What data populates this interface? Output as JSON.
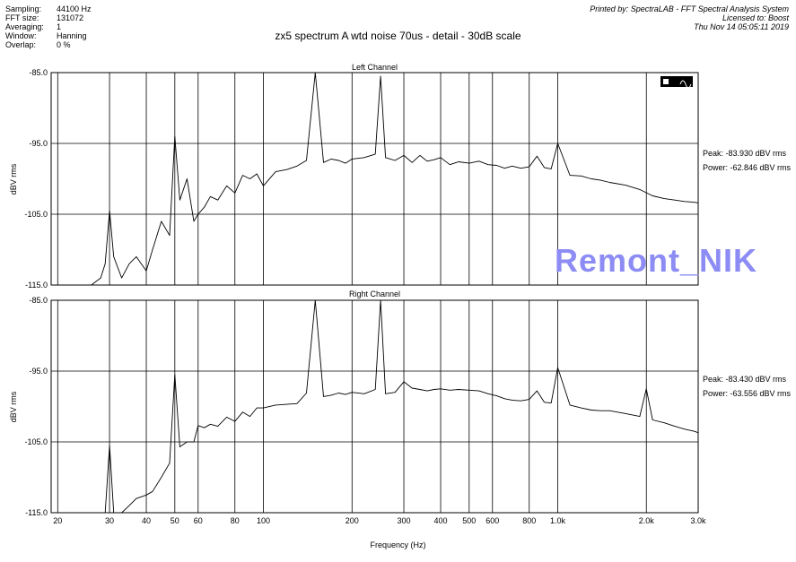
{
  "header": {
    "settings": [
      {
        "key": "Sampling:",
        "value": "44100 Hz"
      },
      {
        "key": "FFT size:",
        "value": "131072"
      },
      {
        "key": "Averaging:",
        "value": "1"
      },
      {
        "key": "Window:",
        "value": "Hanning"
      },
      {
        "key": "Overlap:",
        "value": "0 %"
      }
    ],
    "printed_by": "Printed by: SpectraLAB - FFT Spectral Analysis System",
    "licensed_to": "Licensed to: Boost",
    "date": "Thu Nov 14 05:05:11 2019"
  },
  "title": "zx5 spectrum A wtd noise 70us - detail - 30dB scale",
  "watermark": "Remont_NIK",
  "toolbar_icon": "spectrum-icon",
  "chart_data": [
    {
      "type": "line",
      "title": "Left Channel",
      "ylabel": "dBV rms",
      "xlabel": "Frequency (Hz)",
      "xscale": "log",
      "xlim": [
        19,
        3000
      ],
      "ylim": [
        -115,
        -85
      ],
      "yticks": [
        -85.0,
        -95.0,
        -105.0,
        -115.0
      ],
      "ytick_labels": [
        "-85.0",
        "-95.0",
        "-105.0",
        "-115.0"
      ],
      "xticks": [
        20,
        30,
        40,
        50,
        60,
        80,
        100,
        200,
        300,
        400,
        500,
        600,
        800,
        1000,
        2000,
        3000
      ],
      "xtick_labels": [
        "20",
        "30",
        "40",
        "50",
        "60",
        "80",
        "100",
        "200",
        "300",
        "400",
        "500",
        "600",
        "800",
        "1.0k",
        "2.0k",
        "3.0k"
      ],
      "grid": true,
      "peak": "Peak: -83.930 dBV rms",
      "power": "Power: -62.846 dBV rms",
      "series": [
        {
          "x": [
            19,
            26,
            28,
            29,
            30,
            31,
            33,
            35,
            37,
            40,
            42,
            45,
            48,
            50,
            52,
            55,
            58,
            60,
            63,
            66,
            70,
            75,
            80,
            85,
            90,
            95,
            100,
            110,
            120,
            130,
            140,
            150,
            160,
            170,
            180,
            190,
            200,
            220,
            240,
            250,
            260,
            280,
            300,
            320,
            340,
            360,
            380,
            400,
            430,
            460,
            500,
            540,
            580,
            620,
            660,
            700,
            750,
            800,
            850,
            900,
            950,
            1000,
            1100,
            1200,
            1300,
            1400,
            1500,
            1700,
            1900,
            2100,
            2300,
            2500,
            2700,
            2900,
            3000
          ],
          "values": [
            -115,
            -115,
            -114,
            -112,
            -104.5,
            -111,
            -114,
            -112,
            -111,
            -113,
            -110,
            -106,
            -108,
            -94,
            -103,
            -100,
            -106,
            -105,
            -104,
            -102.5,
            -103,
            -101,
            -102,
            -99.5,
            -100,
            -99.3,
            -101,
            -99,
            -98.7,
            -98.2,
            -97.4,
            -84,
            -97.7,
            -97.2,
            -97.4,
            -97.8,
            -97.2,
            -97,
            -96.5,
            -85.5,
            -97,
            -97.4,
            -96.7,
            -97.7,
            -96.7,
            -97.5,
            -97.3,
            -97,
            -98,
            -97.6,
            -97.8,
            -97.5,
            -98,
            -98.1,
            -98.5,
            -98.2,
            -98.5,
            -98.3,
            -96.8,
            -98.4,
            -98.6,
            -95,
            -99.5,
            -99.6,
            -100,
            -100.2,
            -100.5,
            -100.9,
            -101.5,
            -102.4,
            -102.8,
            -103,
            -103.2,
            -103.3,
            -103.4
          ]
        }
      ]
    },
    {
      "type": "line",
      "title": "Right Channel",
      "ylabel": "dBV rms",
      "xlabel": "Frequency (Hz)",
      "xscale": "log",
      "xlim": [
        19,
        3000
      ],
      "ylim": [
        -115,
        -85
      ],
      "yticks": [
        -85.0,
        -95.0,
        -105.0,
        -115.0
      ],
      "ytick_labels": [
        "-85.0",
        "-95.0",
        "-105.0",
        "-115.0"
      ],
      "xticks": [
        20,
        30,
        40,
        50,
        60,
        80,
        100,
        200,
        300,
        400,
        500,
        600,
        800,
        1000,
        2000,
        3000
      ],
      "xtick_labels": [
        "20",
        "30",
        "40",
        "50",
        "60",
        "80",
        "100",
        "200",
        "300",
        "400",
        "500",
        "600",
        "800",
        "1.0k",
        "2.0k",
        "3.0k"
      ],
      "grid": true,
      "peak": "Peak: -83.430 dBV rms",
      "power": "Power: -63.556 dBV rms",
      "series": [
        {
          "x": [
            19,
            29,
            30,
            31,
            33,
            35,
            37,
            40,
            42,
            45,
            48,
            50,
            52,
            55,
            58,
            60,
            63,
            66,
            70,
            75,
            80,
            85,
            90,
            95,
            100,
            110,
            120,
            130,
            140,
            150,
            160,
            170,
            180,
            190,
            200,
            220,
            240,
            250,
            260,
            280,
            300,
            320,
            340,
            360,
            380,
            400,
            430,
            460,
            500,
            540,
            580,
            620,
            660,
            700,
            750,
            800,
            850,
            900,
            950,
            1000,
            1100,
            1200,
            1300,
            1400,
            1500,
            1700,
            1900,
            2000,
            2100,
            2300,
            2500,
            2700,
            2900,
            3000
          ],
          "values": [
            -115,
            -115,
            -105.5,
            -115,
            -115,
            -114,
            -113,
            -112.5,
            -112,
            -110,
            -108,
            -95.5,
            -105.7,
            -105,
            -105,
            -102.7,
            -103,
            -102.5,
            -102.8,
            -101.5,
            -102.1,
            -100.8,
            -101.4,
            -100.2,
            -100.2,
            -99.8,
            -99.7,
            -99.6,
            -98.1,
            -84,
            -98.6,
            -98.4,
            -98.1,
            -98.3,
            -98,
            -98.2,
            -97.6,
            -84.5,
            -98.2,
            -98,
            -96.5,
            -97.4,
            -97.6,
            -97.8,
            -97.6,
            -97.5,
            -97.7,
            -97.6,
            -97.7,
            -97.8,
            -98.2,
            -98.5,
            -98.9,
            -99.1,
            -99.2,
            -99,
            -97.8,
            -99.4,
            -99.5,
            -94.5,
            -99.8,
            -100.2,
            -100.5,
            -100.6,
            -100.6,
            -101,
            -101.4,
            -97.5,
            -101.9,
            -102.3,
            -102.8,
            -103.2,
            -103.5,
            -103.7
          ]
        }
      ]
    }
  ]
}
